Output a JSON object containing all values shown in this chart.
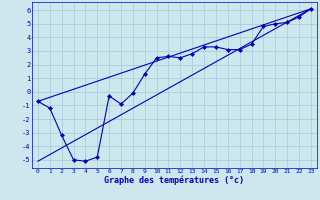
{
  "xlabel": "Graphe des températures (°c)",
  "bg_color": "#cce8ee",
  "grid_color": "#aad0dc",
  "line_color": "#0000bb",
  "xlim": [
    -0.5,
    23.5
  ],
  "ylim": [
    -5.6,
    6.6
  ],
  "yticks": [
    -5,
    -4,
    -3,
    -2,
    -1,
    0,
    1,
    2,
    3,
    4,
    5,
    6
  ],
  "xticks": [
    0,
    1,
    2,
    3,
    4,
    5,
    6,
    7,
    8,
    9,
    10,
    11,
    12,
    13,
    14,
    15,
    16,
    17,
    18,
    19,
    20,
    21,
    22,
    23
  ],
  "data_x": [
    0,
    1,
    2,
    3,
    4,
    5,
    6,
    7,
    8,
    9,
    10,
    11,
    12,
    13,
    14,
    15,
    16,
    17,
    18,
    19,
    20,
    21,
    22,
    23
  ],
  "data_y": [
    -0.7,
    -1.2,
    -3.2,
    -5.0,
    -5.1,
    -4.8,
    -0.3,
    -0.9,
    -0.1,
    1.3,
    2.5,
    2.6,
    2.5,
    2.8,
    3.3,
    3.3,
    3.1,
    3.1,
    3.5,
    4.8,
    5.0,
    5.1,
    5.5,
    6.1
  ],
  "trend1_x": [
    0,
    23
  ],
  "trend1_y": [
    -0.7,
    6.1
  ],
  "trend2_x": [
    0,
    23
  ],
  "trend2_y": [
    -5.1,
    6.1
  ]
}
